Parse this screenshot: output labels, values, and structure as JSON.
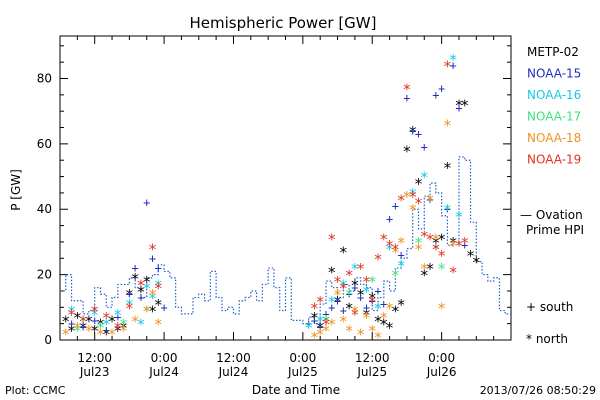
{
  "chart_data": {
    "type": "scatter",
    "title": "Hemispheric Power [GW]",
    "ylabel": "P [GW]",
    "xlabel": "Date and Time",
    "ylim": [
      0,
      93
    ],
    "yticks": [
      0,
      20,
      40,
      60,
      80
    ],
    "x_unit": "hours since 2013-07-23 00:00",
    "xlim": [
      6,
      84
    ],
    "xticks": [
      {
        "x": 12,
        "line1": "12:00",
        "line2": "Jul23"
      },
      {
        "x": 24,
        "line1": "0:00",
        "line2": "Jul24"
      },
      {
        "x": 36,
        "line1": "12:00",
        "line2": "Jul24"
      },
      {
        "x": 48,
        "line1": "0:00",
        "line2": "Jul25"
      },
      {
        "x": 60,
        "line1": "12:00",
        "line2": "Jul25"
      },
      {
        "x": 72,
        "line1": "0:00",
        "line2": "Jul26"
      }
    ],
    "legend": {
      "placement": "right",
      "entries": [
        {
          "name": "METP-02",
          "color": "#000000"
        },
        {
          "name": "NOAA-15",
          "color": "#1f2fbf"
        },
        {
          "name": "NOAA-16",
          "color": "#17c9e6"
        },
        {
          "name": "NOAA-17",
          "color": "#3fe07f"
        },
        {
          "name": "NOAA-18",
          "color": "#f0921e"
        },
        {
          "name": "NOAA-19",
          "color": "#e0331f"
        }
      ],
      "ovation_label_1": "— Ovation",
      "ovation_label_2": "Prime HPI",
      "ovation_color": "#1f5fcf",
      "south_label": "+ south",
      "north_label": "* north"
    },
    "ovation_step": [
      [
        6,
        15
      ],
      [
        7,
        20
      ],
      [
        8,
        12
      ],
      [
        10,
        8
      ],
      [
        11,
        9
      ],
      [
        12,
        16
      ],
      [
        13,
        14
      ],
      [
        14,
        10
      ],
      [
        15,
        13
      ],
      [
        16,
        17
      ],
      [
        18,
        19
      ],
      [
        19,
        16
      ],
      [
        20,
        13
      ],
      [
        21,
        19
      ],
      [
        22,
        20
      ],
      [
        23,
        23
      ],
      [
        24,
        21
      ],
      [
        25,
        19
      ],
      [
        26,
        10
      ],
      [
        27,
        8
      ],
      [
        28,
        8
      ],
      [
        29,
        13
      ],
      [
        30,
        14
      ],
      [
        31,
        12
      ],
      [
        32,
        21
      ],
      [
        33,
        13
      ],
      [
        34,
        9
      ],
      [
        35,
        10
      ],
      [
        36,
        8
      ],
      [
        37,
        12
      ],
      [
        38,
        13
      ],
      [
        39,
        15
      ],
      [
        40,
        12
      ],
      [
        41,
        17
      ],
      [
        42,
        22
      ],
      [
        43,
        16
      ],
      [
        44,
        9
      ],
      [
        45,
        19
      ],
      [
        46,
        6
      ],
      [
        47,
        6
      ],
      [
        48,
        5
      ],
      [
        49,
        7
      ],
      [
        50,
        5
      ],
      [
        51,
        11
      ],
      [
        52,
        18
      ],
      [
        53,
        16
      ],
      [
        54,
        13
      ],
      [
        55,
        17
      ],
      [
        56,
        15
      ],
      [
        57,
        19
      ],
      [
        58,
        17
      ],
      [
        59,
        16
      ],
      [
        60,
        9
      ],
      [
        61,
        13
      ],
      [
        62,
        18
      ],
      [
        63,
        15
      ],
      [
        64,
        22
      ],
      [
        65,
        25
      ],
      [
        66,
        28
      ],
      [
        67,
        40
      ],
      [
        68,
        34
      ],
      [
        69,
        44
      ],
      [
        70,
        48
      ],
      [
        71,
        45
      ],
      [
        72,
        38
      ],
      [
        73,
        29
      ],
      [
        74,
        30
      ],
      [
        75,
        56
      ],
      [
        76,
        55
      ],
      [
        77,
        36
      ],
      [
        78,
        24
      ],
      [
        79,
        20
      ],
      [
        80,
        18
      ],
      [
        81,
        19
      ],
      [
        82,
        9
      ],
      [
        83,
        8
      ],
      [
        84,
        8
      ]
    ],
    "series": [
      {
        "name": "METP-02",
        "marker": "*",
        "points": [
          [
            7,
            6
          ],
          [
            8,
            3
          ],
          [
            9,
            7
          ],
          [
            10,
            4
          ],
          [
            11,
            6
          ],
          [
            12,
            3
          ],
          [
            13,
            5
          ],
          [
            14,
            2
          ],
          [
            15,
            6
          ],
          [
            16,
            3
          ],
          [
            17,
            4
          ],
          [
            18,
            14
          ],
          [
            19,
            19
          ],
          [
            20,
            15
          ],
          [
            21,
            18
          ],
          [
            22,
            9
          ],
          [
            23,
            11
          ],
          [
            50,
            7
          ],
          [
            51,
            4
          ],
          [
            52,
            6
          ],
          [
            53,
            21
          ],
          [
            54,
            12
          ],
          [
            55,
            27
          ],
          [
            56,
            10
          ],
          [
            57,
            17
          ],
          [
            58,
            14
          ],
          [
            59,
            8
          ],
          [
            60,
            13
          ],
          [
            61,
            6
          ],
          [
            62,
            5
          ],
          [
            63,
            4
          ],
          [
            64,
            9
          ],
          [
            65,
            11
          ],
          [
            66,
            58
          ],
          [
            67,
            64
          ],
          [
            68,
            48
          ],
          [
            69,
            20
          ],
          [
            70,
            22
          ],
          [
            71,
            30
          ],
          [
            72,
            31
          ],
          [
            73,
            53
          ],
          [
            74,
            30
          ],
          [
            75,
            72
          ],
          [
            76,
            72
          ],
          [
            77,
            26
          ],
          [
            78,
            24
          ]
        ]
      },
      {
        "name": "NOAA-15",
        "marker": "+",
        "points": [
          [
            8,
            5
          ],
          [
            10,
            4
          ],
          [
            12,
            6
          ],
          [
            14,
            3
          ],
          [
            16,
            7
          ],
          [
            18,
            14
          ],
          [
            19,
            22
          ],
          [
            20,
            13
          ],
          [
            21,
            42
          ],
          [
            22,
            25
          ],
          [
            23,
            22
          ],
          [
            24,
            10
          ],
          [
            49,
            5
          ],
          [
            50,
            6
          ],
          [
            51,
            4
          ],
          [
            52,
            8
          ],
          [
            53,
            10
          ],
          [
            54,
            12
          ],
          [
            55,
            9
          ],
          [
            56,
            14
          ],
          [
            57,
            16
          ],
          [
            58,
            13
          ],
          [
            59,
            10
          ],
          [
            60,
            12
          ],
          [
            61,
            15
          ],
          [
            62,
            11
          ],
          [
            63,
            37
          ],
          [
            64,
            41
          ],
          [
            65,
            26
          ],
          [
            66,
            74
          ],
          [
            67,
            64
          ],
          [
            68,
            63
          ],
          [
            69,
            59
          ],
          [
            70,
            43
          ],
          [
            71,
            75
          ],
          [
            72,
            77
          ],
          [
            73,
            40
          ],
          [
            74,
            84
          ],
          [
            75,
            71
          ],
          [
            76,
            29
          ]
        ]
      },
      {
        "name": "NOAA-16",
        "marker": "*",
        "points": [
          [
            8,
            9
          ],
          [
            10,
            6
          ],
          [
            12,
            8
          ],
          [
            14,
            5
          ],
          [
            16,
            8
          ],
          [
            18,
            11
          ],
          [
            20,
            5
          ],
          [
            21,
            16
          ],
          [
            22,
            13
          ],
          [
            23,
            17
          ],
          [
            49,
            4
          ],
          [
            51,
            6
          ],
          [
            53,
            12
          ],
          [
            55,
            17
          ],
          [
            57,
            22
          ],
          [
            59,
            15
          ],
          [
            61,
            10
          ],
          [
            63,
            28
          ],
          [
            65,
            23
          ],
          [
            67,
            45
          ],
          [
            69,
            50
          ],
          [
            71,
            28
          ],
          [
            73,
            40
          ],
          [
            74,
            86
          ],
          [
            75,
            38
          ]
        ]
      },
      {
        "name": "NOAA-17",
        "marker": "*",
        "points": [
          [
            9,
            3
          ],
          [
            13,
            4
          ],
          [
            17,
            5
          ],
          [
            21,
            9
          ],
          [
            52,
            6
          ],
          [
            56,
            14
          ],
          [
            60,
            18
          ],
          [
            64,
            20
          ],
          [
            68,
            30
          ],
          [
            72,
            22
          ]
        ]
      },
      {
        "name": "NOAA-18",
        "marker": "*",
        "points": [
          [
            7,
            2
          ],
          [
            9,
            4
          ],
          [
            11,
            3
          ],
          [
            13,
            2
          ],
          [
            15,
            2
          ],
          [
            17,
            3
          ],
          [
            19,
            6
          ],
          [
            21,
            9
          ],
          [
            22,
            14
          ],
          [
            23,
            5
          ],
          [
            50,
            1
          ],
          [
            51,
            2
          ],
          [
            52,
            3
          ],
          [
            53,
            5
          ],
          [
            54,
            14
          ],
          [
            55,
            6
          ],
          [
            56,
            3
          ],
          [
            57,
            9
          ],
          [
            58,
            2
          ],
          [
            59,
            7
          ],
          [
            60,
            3
          ],
          [
            61,
            1
          ],
          [
            62,
            7
          ],
          [
            63,
            10
          ],
          [
            64,
            27
          ],
          [
            65,
            30
          ],
          [
            66,
            44
          ],
          [
            67,
            40
          ],
          [
            68,
            28
          ],
          [
            69,
            22
          ],
          [
            70,
            43
          ],
          [
            71,
            31
          ],
          [
            72,
            10
          ],
          [
            73,
            66
          ],
          [
            74,
            29
          ]
        ]
      },
      {
        "name": "NOAA-19",
        "marker": "*",
        "points": [
          [
            8,
            8
          ],
          [
            10,
            6
          ],
          [
            12,
            9
          ],
          [
            14,
            7
          ],
          [
            16,
            4
          ],
          [
            18,
            10
          ],
          [
            20,
            17
          ],
          [
            22,
            28
          ],
          [
            23,
            16
          ],
          [
            50,
            10
          ],
          [
            51,
            12
          ],
          [
            52,
            5
          ],
          [
            53,
            31
          ],
          [
            54,
            18
          ],
          [
            55,
            16
          ],
          [
            56,
            20
          ],
          [
            57,
            8
          ],
          [
            58,
            22
          ],
          [
            59,
            18
          ],
          [
            60,
            12
          ],
          [
            61,
            25
          ],
          [
            62,
            31
          ],
          [
            63,
            29
          ],
          [
            64,
            28
          ],
          [
            65,
            43
          ],
          [
            66,
            77
          ],
          [
            67,
            44
          ],
          [
            68,
            42
          ],
          [
            69,
            32
          ],
          [
            70,
            31
          ],
          [
            71,
            28
          ],
          [
            72,
            26
          ],
          [
            73,
            84
          ],
          [
            74,
            21
          ],
          [
            75,
            29
          ],
          [
            76,
            30
          ]
        ]
      }
    ]
  },
  "footer": {
    "plot_credit": "Plot: CCMC",
    "timestamp": "2013/07/26 08:50:29"
  }
}
